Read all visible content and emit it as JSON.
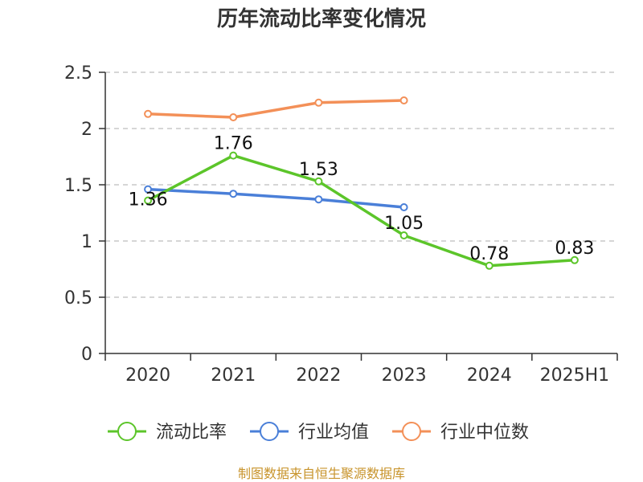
{
  "chart_data": {
    "type": "line",
    "title": "历年流动比率变化情况",
    "categories": [
      "2020",
      "2021",
      "2022",
      "2023",
      "2024",
      "2025H1"
    ],
    "ylim": [
      0,
      2.5
    ],
    "yticks": [
      "0",
      "0.5",
      "1",
      "1.5",
      "2",
      "2.5"
    ],
    "grid": true,
    "legend_position": "bottom",
    "series": [
      {
        "name": "流动比率",
        "color": "#5cc52a",
        "values": [
          1.36,
          1.76,
          1.53,
          1.05,
          0.78,
          0.83
        ],
        "labels": [
          "1.36",
          "1.76",
          "1.53",
          "1.05",
          "0.78",
          "0.83"
        ]
      },
      {
        "name": "行业均值",
        "color": "#4a7fd8",
        "values": [
          1.46,
          1.42,
          1.37,
          1.3,
          null,
          null
        ]
      },
      {
        "name": "行业中位数",
        "color": "#f39058",
        "values": [
          2.13,
          2.1,
          2.23,
          2.25,
          null,
          null
        ]
      }
    ],
    "source": "制图数据来自恒生聚源数据库"
  }
}
